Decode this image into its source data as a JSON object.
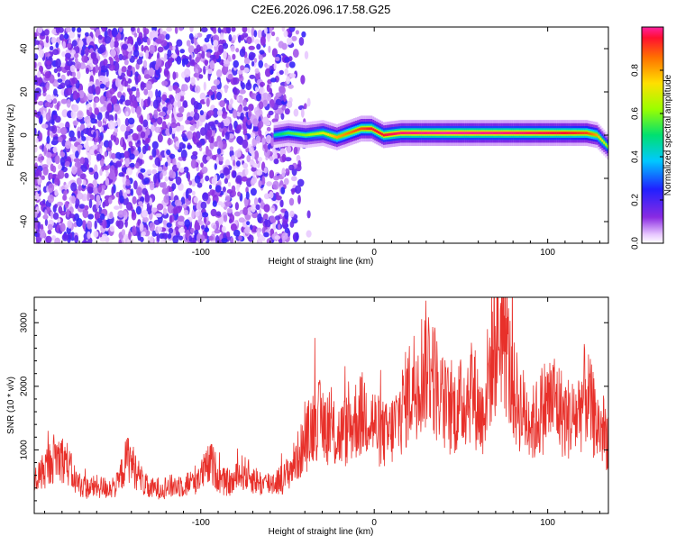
{
  "figure": {
    "title": "C2E6.2026.096.17.58.G25"
  },
  "chart_data": [
    {
      "type": "heatmap",
      "title": "C2E6.2026.096.17.58.G25",
      "xlabel": "Height of straight line (km)",
      "ylabel": "Frequency (Hz)",
      "xlim": [
        -196,
        135
      ],
      "ylim": [
        -50,
        50
      ],
      "xticks": [
        -100,
        0,
        100
      ],
      "yticks": [
        -40,
        -20,
        0,
        20,
        40
      ],
      "colorbar": {
        "label": "Normalized spectral amplitude",
        "range": [
          0,
          1
        ],
        "ticks": [
          0.0,
          0.2,
          0.4,
          0.6,
          0.8
        ]
      },
      "noise_region_x": [
        -196,
        -35
      ],
      "ridge": {
        "x": [
          -58,
          -50,
          -40,
          -30,
          -22,
          -15,
          -8,
          -2,
          5,
          15,
          40,
          80,
          110,
          122,
          128,
          135
        ],
        "frequency": [
          0,
          1,
          0,
          1,
          -1,
          1,
          3,
          3,
          0,
          1,
          1,
          1,
          1,
          1,
          0,
          -6
        ],
        "amplitude": [
          0.45,
          0.55,
          0.6,
          0.7,
          0.8,
          0.85,
          0.9,
          0.95,
          0.95,
          0.98,
          1.0,
          0.98,
          0.95,
          0.9,
          0.8,
          0.6
        ]
      }
    },
    {
      "type": "line",
      "xlabel": "Height of straight line (km)",
      "ylabel": "SNR (10 * v/v)",
      "xlim": [
        -196,
        135
      ],
      "ylim": [
        0,
        3400
      ],
      "xticks": [
        -100,
        0,
        100
      ],
      "yticks": [
        1000,
        2000,
        3000
      ],
      "color": "#e8302a",
      "series": [
        {
          "x": [
            -196,
            -190,
            -184,
            -178,
            -172,
            -166,
            -160,
            -154,
            -148,
            -142,
            -136,
            -130,
            -124,
            -118,
            -112,
            -106,
            -100,
            -94,
            -88,
            -82,
            -76,
            -70,
            -64,
            -58,
            -52,
            -46,
            -40,
            -34,
            -28,
            -22,
            -16,
            -10,
            -4,
            2,
            8,
            14,
            20,
            26,
            32,
            38,
            44,
            50,
            56,
            62,
            68,
            74,
            80,
            86,
            92,
            98,
            104,
            110,
            116,
            122,
            128,
            135
          ],
          "values": [
            500,
            700,
            900,
            850,
            500,
            400,
            420,
            400,
            450,
            900,
            600,
            380,
            400,
            420,
            450,
            480,
            600,
            800,
            500,
            480,
            650,
            550,
            450,
            500,
            550,
            800,
            1100,
            1500,
            1400,
            1200,
            1300,
            1500,
            1600,
            1300,
            1200,
            1500,
            1900,
            2200,
            2400,
            1800,
            1600,
            1700,
            2000,
            1500,
            2500,
            3000,
            1900,
            1600,
            1400,
            1700,
            1800,
            1500,
            1500,
            1900,
            1400,
            1200
          ]
        }
      ]
    }
  ]
}
